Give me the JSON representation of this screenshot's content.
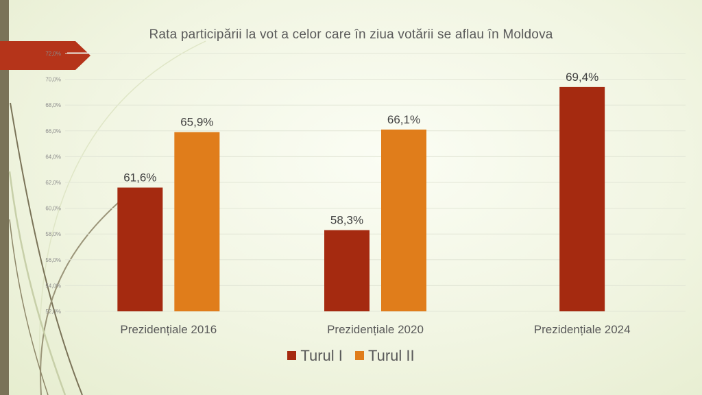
{
  "colors": {
    "turul1": "#a52a10",
    "turul2": "#e07d1b",
    "band": "#7a7358",
    "arrow": "#b5341a"
  },
  "chart_data": {
    "type": "bar",
    "title": "Rata participării la vot a celor care în ziua votării se aflau în Moldova",
    "categories": [
      "Prezidențiale 2016",
      "Prezidențiale 2020",
      "Prezidențiale 2024"
    ],
    "series": [
      {
        "name": "Turul I",
        "values": [
          61.6,
          58.3,
          69.4
        ],
        "labels": [
          "61,6%",
          "58,3%",
          "69,4%"
        ]
      },
      {
        "name": "Turul II",
        "values": [
          65.9,
          66.1,
          null
        ],
        "labels": [
          "65,9%",
          "66,1%",
          null
        ]
      }
    ],
    "ylim": [
      52,
      72
    ],
    "yticks": [
      52,
      54,
      56,
      58,
      60,
      62,
      64,
      66,
      68,
      70,
      72
    ],
    "ytick_labels": [
      "52,0%",
      "54,0%",
      "56,0%",
      "58,0%",
      "60,0%",
      "62,0%",
      "64,0%",
      "66,0%",
      "68,0%",
      "70,0%",
      "72,0%"
    ],
    "legend_position": "bottom",
    "grid": true
  }
}
